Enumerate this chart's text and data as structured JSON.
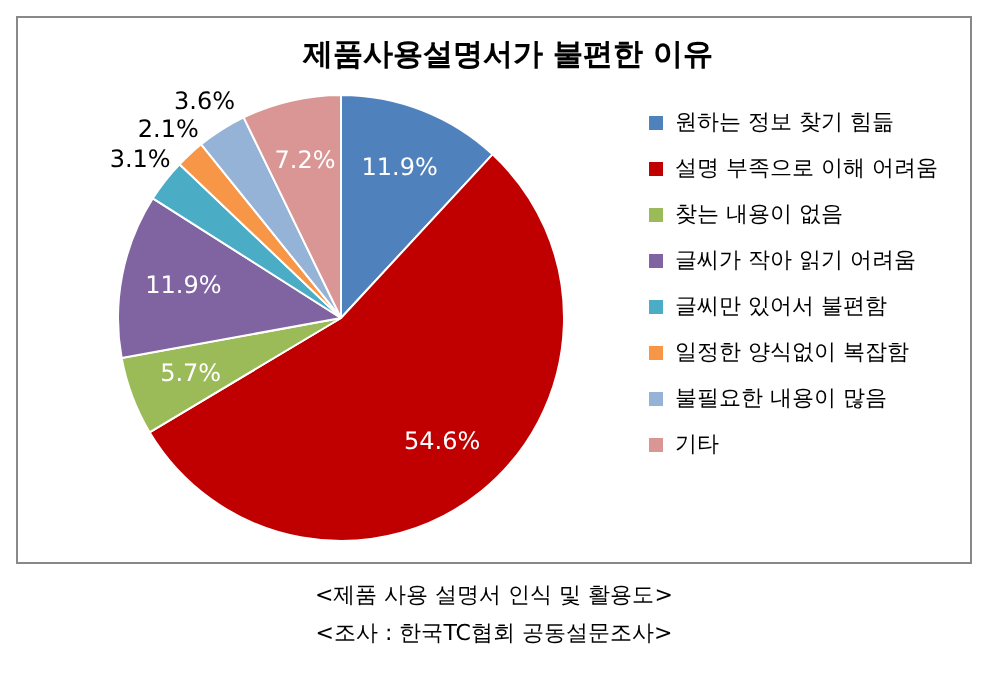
{
  "chart_data": {
    "type": "pie",
    "title": "제품사용설명서가 불편한 이유",
    "categories": [
      "원하는 정보 찾기 힘듦",
      "설명 부족으로 이해 어려움",
      "찾는 내용이 없음",
      "글씨가 작아 읽기 어려움",
      "글씨만 있어서 불편함",
      "일정한 양식없이 복잡함",
      "불필요한 내용이 많음",
      "기타"
    ],
    "values": [
      11.9,
      54.6,
      5.7,
      11.9,
      3.1,
      2.1,
      3.6,
      7.2
    ],
    "value_labels": [
      "11.9%",
      "54.6%",
      "5.7%",
      "11.9%",
      "3.1%",
      "2.1%",
      "3.6%",
      "7.2%"
    ],
    "colors": [
      "#4f81bd",
      "#c00000",
      "#9bbb59",
      "#8064a2",
      "#4bacc6",
      "#f79646",
      "#95b3d7",
      "#d99694"
    ],
    "legend": "right",
    "annotations": [
      "<제품 사용 설명서 인식 및 활용도>",
      "<조사 : 한국TC협회 공동설문조사>"
    ]
  }
}
